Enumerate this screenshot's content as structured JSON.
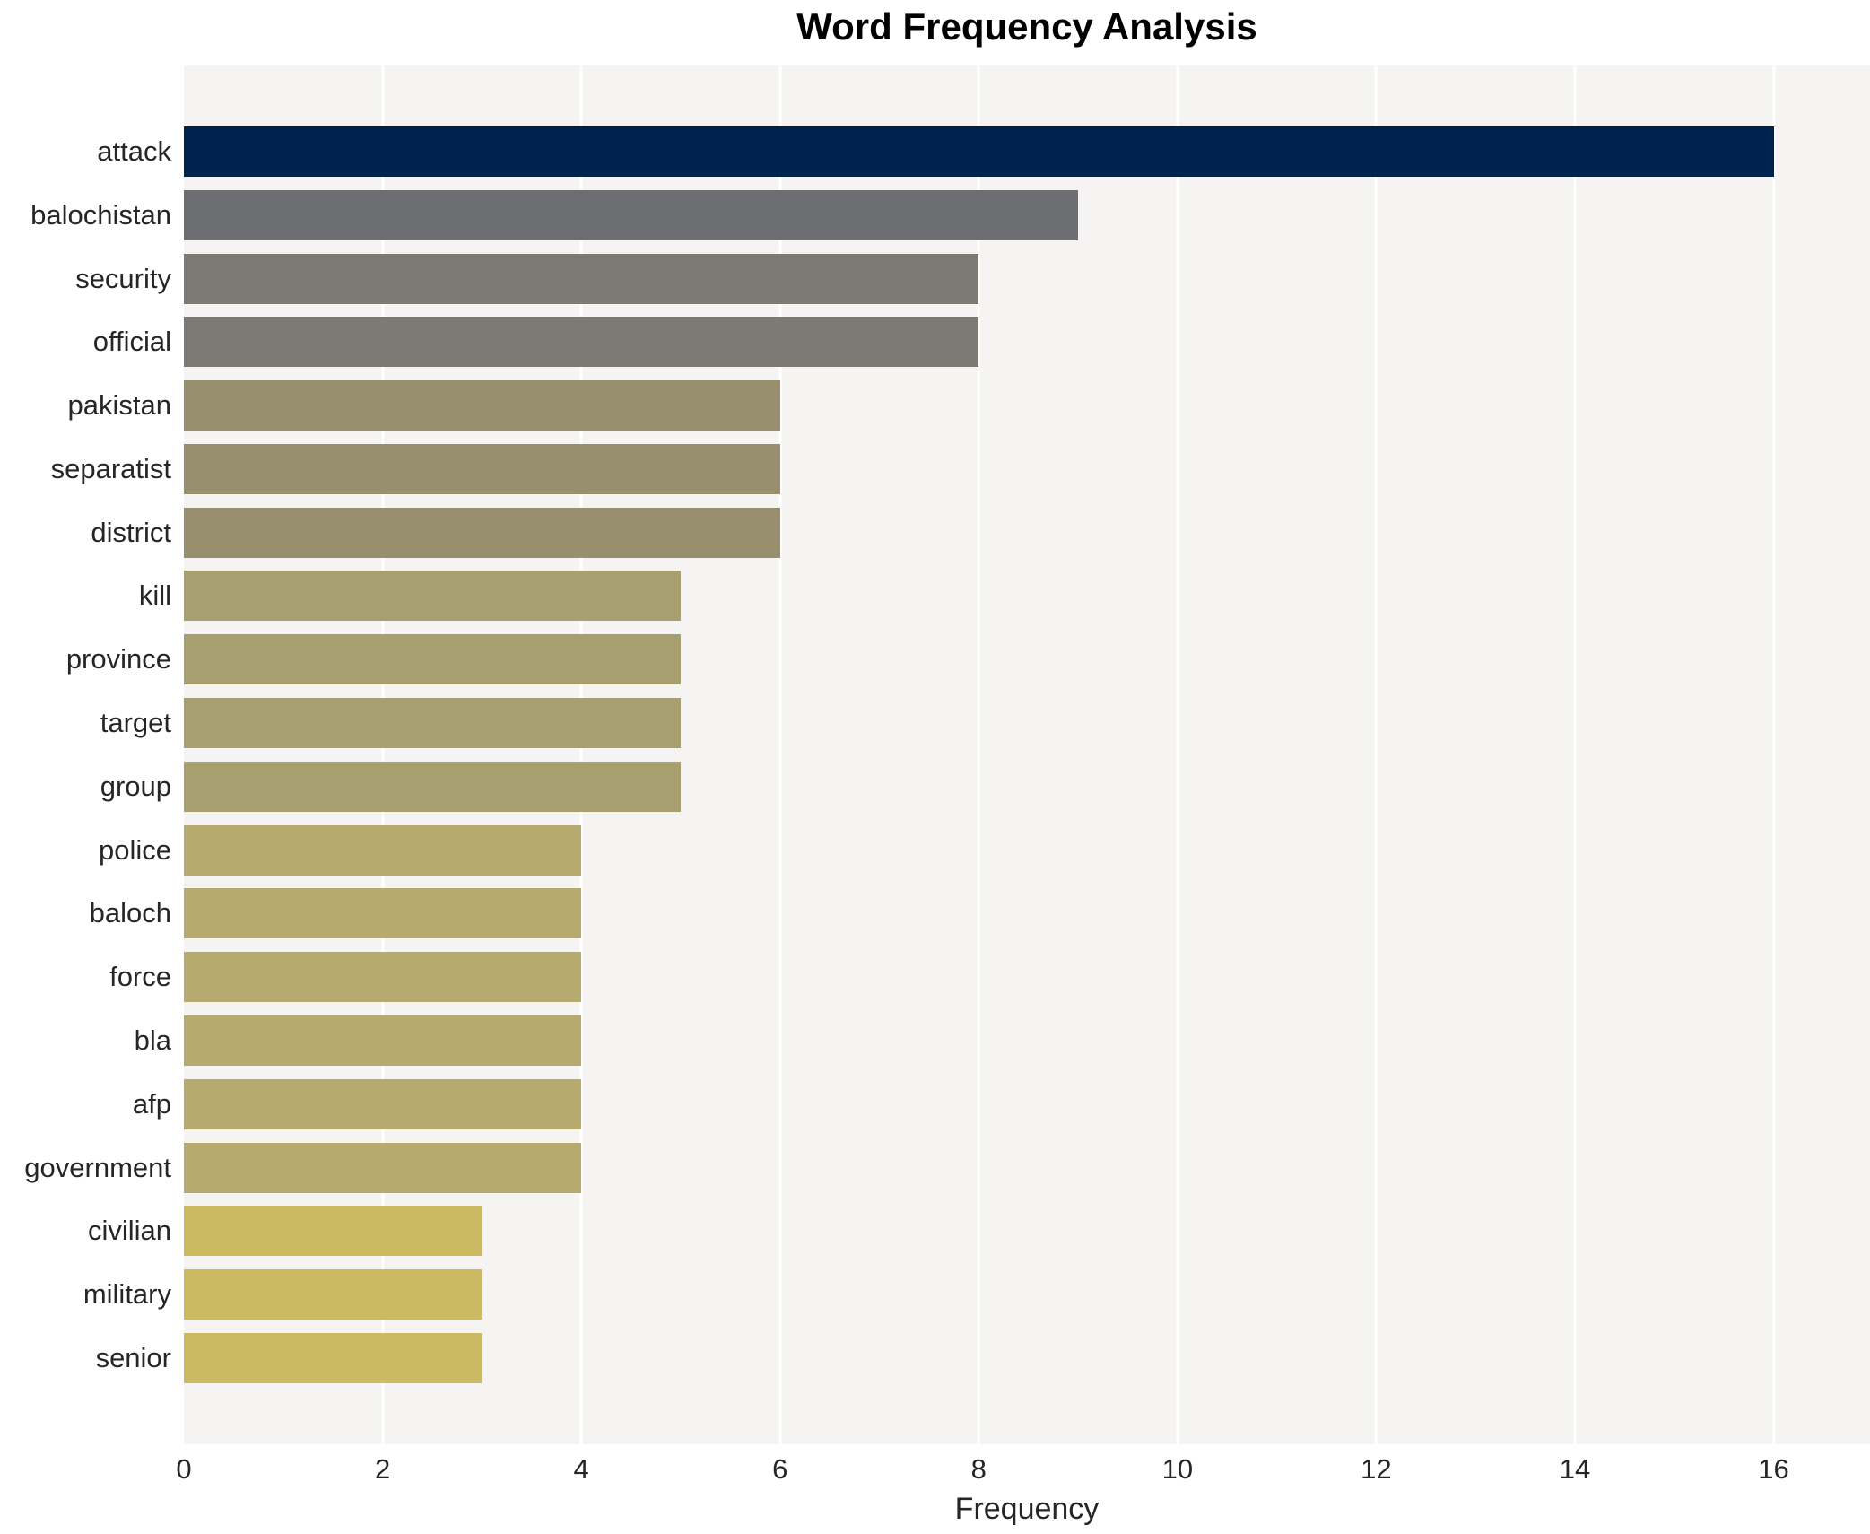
{
  "title": "Word Frequency Analysis",
  "colors": {
    "plot_background": "#f5f4f2",
    "gridline": "#ffffff",
    "text": "#262626",
    "title_text": "#000000"
  },
  "chart_data": {
    "type": "bar",
    "orientation": "horizontal",
    "title": "Word Frequency Analysis",
    "xlabel": "Frequency",
    "ylabel": "",
    "categories": [
      "attack",
      "balochistan",
      "security",
      "official",
      "pakistan",
      "separatist",
      "district",
      "kill",
      "province",
      "target",
      "group",
      "police",
      "baloch",
      "force",
      "bla",
      "afp",
      "government",
      "civilian",
      "military",
      "senior"
    ],
    "values": [
      16,
      9,
      8,
      8,
      6,
      6,
      6,
      5,
      5,
      5,
      5,
      4,
      4,
      4,
      4,
      4,
      4,
      3,
      3,
      3
    ],
    "bar_colors": [
      "#00224e",
      "#6d6e71",
      "#7c7a73",
      "#7c7a73",
      "#988f6f",
      "#988f6f",
      "#988f6f",
      "#a89f70",
      "#a89f70",
      "#a89f70",
      "#a89f70",
      "#b6aa6e",
      "#b6aa6e",
      "#b6aa6e",
      "#b6aa6e",
      "#b6aa6e",
      "#b6aa6e",
      "#ccba62",
      "#ccba62",
      "#ccba62"
    ],
    "xticks": [
      0,
      2,
      4,
      6,
      8,
      10,
      12,
      14,
      16
    ],
    "xlim": [
      0,
      16.97
    ],
    "grid": "vertical-white-on-lightgray",
    "legend": "none",
    "colormap_note": "cividis: dark navy for highest frequency grading to yellow-tan for lowest"
  }
}
